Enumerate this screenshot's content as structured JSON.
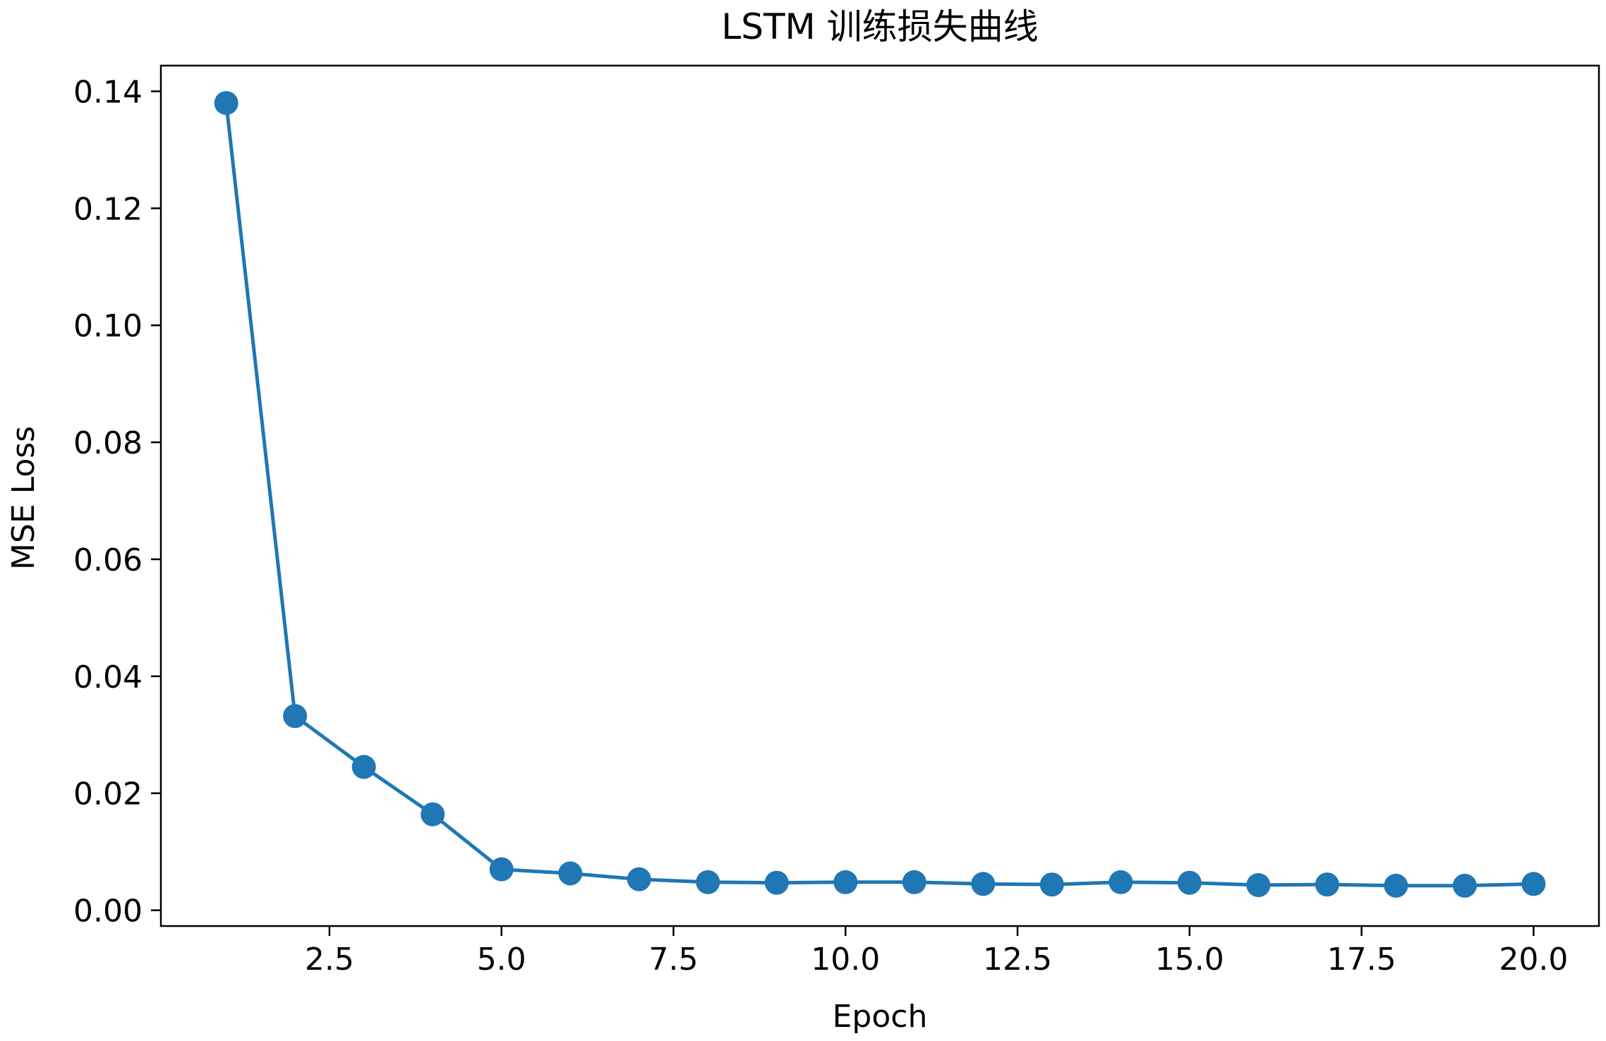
{
  "chart_data": {
    "type": "line",
    "title": "LSTM 训练损失曲线",
    "xlabel": "Epoch",
    "ylabel": "MSE Loss",
    "xlim": [
      0.05,
      20.95
    ],
    "ylim": [
      -0.0027,
      0.1444
    ],
    "x_ticks": [
      2.5,
      5.0,
      7.5,
      10.0,
      12.5,
      15.0,
      17.5,
      20.0
    ],
    "x_tick_labels": [
      "2.5",
      "5.0",
      "7.5",
      "10.0",
      "12.5",
      "15.0",
      "17.5",
      "20.0"
    ],
    "y_ticks": [
      0.0,
      0.02,
      0.04,
      0.06,
      0.08,
      0.1,
      0.12,
      0.14
    ],
    "y_tick_labels": [
      "0.00",
      "0.02",
      "0.04",
      "0.06",
      "0.08",
      "0.10",
      "0.12",
      "0.14"
    ],
    "grid": false,
    "color": "#1f77b4",
    "series": [
      {
        "x": [
          1,
          2,
          3,
          4,
          5,
          6,
          7,
          8,
          9,
          10,
          11,
          12,
          13,
          14,
          15,
          16,
          17,
          18,
          19,
          20
        ],
        "values": [
          0.138,
          0.0332,
          0.0245,
          0.0164,
          0.007,
          0.0063,
          0.0053,
          0.0048,
          0.0047,
          0.0048,
          0.0048,
          0.0045,
          0.0044,
          0.0048,
          0.0047,
          0.0043,
          0.0044,
          0.0042,
          0.0042,
          0.0045
        ]
      }
    ]
  }
}
